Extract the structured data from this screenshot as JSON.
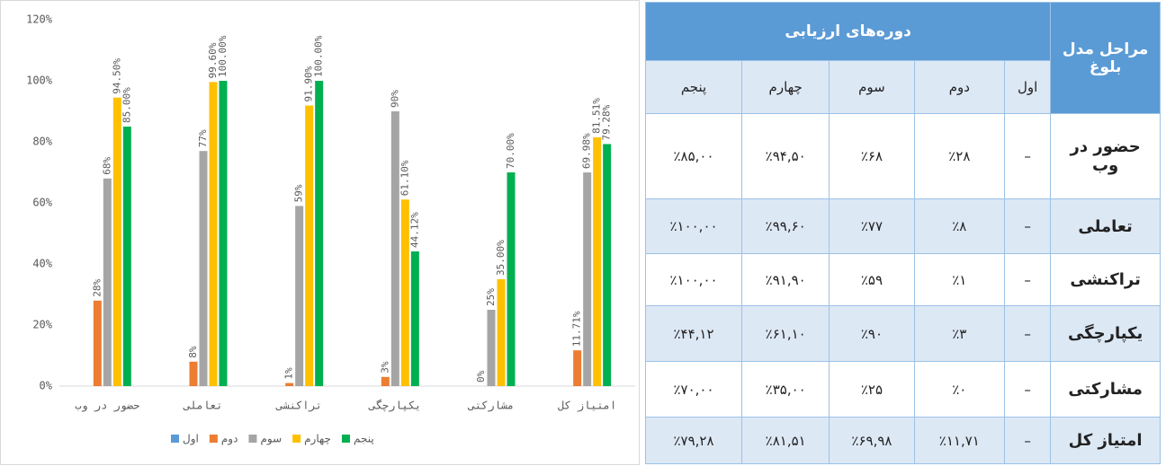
{
  "chart_data": {
    "type": "bar",
    "categories": [
      "حضور در وب",
      "تعاملی",
      "تراکنشی",
      "یکپارچگی",
      "مشارکتی",
      "امتیاز کل"
    ],
    "series": [
      {
        "name": "اول",
        "color": "#5b9bd5",
        "values": [
          null,
          null,
          null,
          null,
          null,
          null
        ]
      },
      {
        "name": "دوم",
        "color": "#ed7d31",
        "values": [
          28,
          8,
          1,
          3,
          0,
          11.71
        ],
        "value_labels": [
          "28%",
          "8%",
          "1%",
          "3%",
          "0%",
          "11.71%"
        ]
      },
      {
        "name": "سوم",
        "color": "#a5a5a5",
        "values": [
          68,
          77,
          59,
          90,
          25,
          69.98
        ],
        "value_labels": [
          "68%",
          "77%",
          "59%",
          "90%",
          "25%",
          "69.98%"
        ]
      },
      {
        "name": "چهارم",
        "color": "#ffc000",
        "values": [
          94.5,
          99.6,
          91.9,
          61.1,
          35,
          81.51
        ],
        "value_labels": [
          "94.50%",
          "99.60%",
          "91.90%",
          "61.10%",
          "35.00%",
          "81.51%"
        ]
      },
      {
        "name": "پنجم",
        "color": "#00b050",
        "values": [
          85,
          100,
          100,
          44.12,
          70,
          79.28
        ],
        "value_labels": [
          "85.00%",
          "100.00%",
          "100.00%",
          "44.12%",
          "70.00%",
          "79.28%"
        ]
      }
    ],
    "ylim": [
      0,
      120
    ],
    "yticks": [
      {
        "value": 0,
        "label": "0%"
      },
      {
        "value": 20,
        "label": "20%"
      },
      {
        "value": 40,
        "label": "40%"
      },
      {
        "value": 60,
        "label": "60%"
      },
      {
        "value": 80,
        "label": "80%"
      },
      {
        "value": 100,
        "label": "100%"
      },
      {
        "value": 120,
        "label": "120%"
      }
    ],
    "grid": false,
    "legend": "bottom"
  },
  "table": {
    "header": {
      "stage": "مراحل مدل بلوغ",
      "periods": "دوره‌های ارزیابی"
    },
    "columns": [
      "اول",
      "دوم",
      "سوم",
      "چهارم",
      "پنجم"
    ],
    "rows": [
      [
        "حضور در وب",
        "–",
        "٪۲۸",
        "٪۶۸",
        "٪۹۴,۵۰",
        "٪۸۵,۰۰"
      ],
      [
        "تعاملی",
        "–",
        "٪۸",
        "٪۷۷",
        "٪۹۹,۶۰",
        "٪۱۰۰,۰۰"
      ],
      [
        "تراکنشی",
        "–",
        "٪۱",
        "٪۵۹",
        "٪۹۱,۹۰",
        "٪۱۰۰,۰۰"
      ],
      [
        "یکپارچگی",
        "–",
        "٪۳",
        "٪۹۰",
        "٪۶۱,۱۰",
        "٪۴۴,۱۲"
      ],
      [
        "مشارکتی",
        "–",
        "٪۰",
        "٪۲۵",
        "٪۳۵,۰۰",
        "٪۷۰,۰۰"
      ],
      [
        "امتیاز کل",
        "–",
        "٪۱۱,۷۱",
        "٪۶۹,۹۸",
        "٪۸۱,۵۱",
        "٪۷۹,۲۸"
      ]
    ]
  }
}
